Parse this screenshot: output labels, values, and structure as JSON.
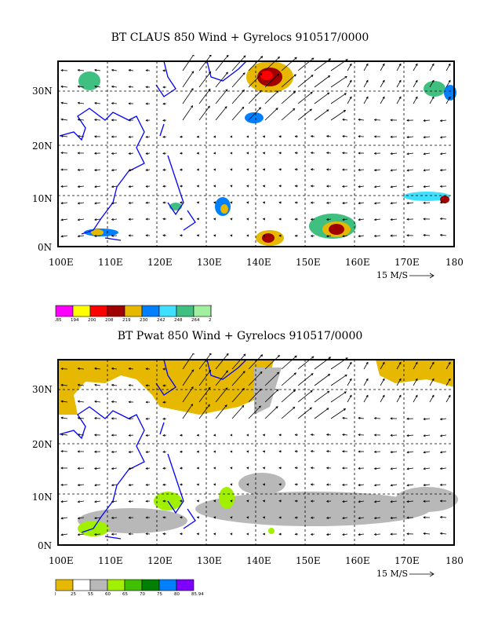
{
  "panels": [
    {
      "title": "BT CLAUS 850 Wind + Gyrelocs 910517/0000",
      "x_ticks": [
        "100E",
        "110E",
        "120E",
        "130E",
        "140E",
        "150E",
        "160E",
        "170E",
        "180"
      ],
      "y_ticks": [
        "0N",
        "10N",
        "20N",
        "30N"
      ],
      "reference_vector": "15 M/S",
      "colorbar": {
        "colors": [
          "#ff00ff",
          "#ffff00",
          "#ff0000",
          "#a00000",
          "#e6b800",
          "#0080ff",
          "#3fe0ff",
          "#40c080",
          "#a0f0a0",
          "#e0e0e0"
        ],
        "labels": [
          "185",
          "194",
          "200",
          "208",
          "219",
          "230",
          "242",
          "248",
          "264",
          "280",
          "285"
        ]
      }
    },
    {
      "title": "BT Pwat 850 Wind + Gyrelocs 910517/0000",
      "x_ticks": [
        "100E",
        "110E",
        "120E",
        "130E",
        "140E",
        "150E",
        "160E",
        "170E",
        "180"
      ],
      "y_ticks": [
        "0N",
        "10N",
        "20N",
        "30N"
      ],
      "reference_vector": "15 M/S",
      "colorbar": {
        "colors": [
          "#e6b800",
          "#ffffff",
          "#b8b8b8",
          "#a0f000",
          "#40c000",
          "#008000",
          "#0080ff",
          "#8000ff"
        ],
        "labels": [
          "0",
          "25",
          "55",
          "60",
          "65",
          "70",
          "75",
          "80",
          "85.94"
        ]
      }
    }
  ]
}
